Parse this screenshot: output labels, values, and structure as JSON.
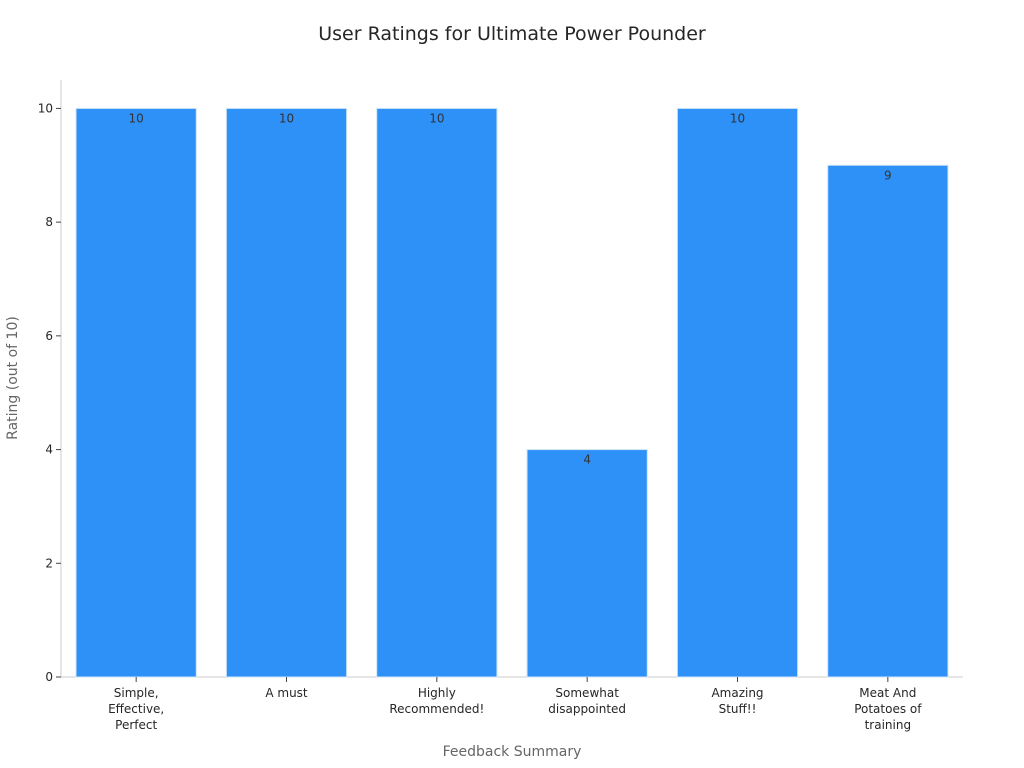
{
  "chart_data": {
    "type": "bar",
    "title": "User Ratings for Ultimate Power Pounder",
    "xlabel": "Feedback Summary",
    "ylabel": "Rating (out of 10)",
    "categories": [
      [
        "Simple,",
        "Effective,",
        "Perfect"
      ],
      [
        "A must"
      ],
      [
        "Highly",
        "Recommended!"
      ],
      [
        "Somewhat",
        "disappointed"
      ],
      [
        "Amazing",
        "Stuff!!"
      ],
      [
        "Meat And",
        "Potatoes of",
        "training"
      ]
    ],
    "values": [
      10,
      10,
      10,
      4,
      10,
      9
    ],
    "data_labels": [
      "10",
      "10",
      "10",
      "4",
      "10",
      "9"
    ],
    "yticks": [
      0,
      2,
      4,
      6,
      8,
      10
    ],
    "ytick_labels": [
      "0",
      "2",
      "4",
      "6",
      "8",
      "10"
    ],
    "ylim": [
      0,
      10.5
    ],
    "grid": false,
    "bar_color": "#2e91f8"
  }
}
